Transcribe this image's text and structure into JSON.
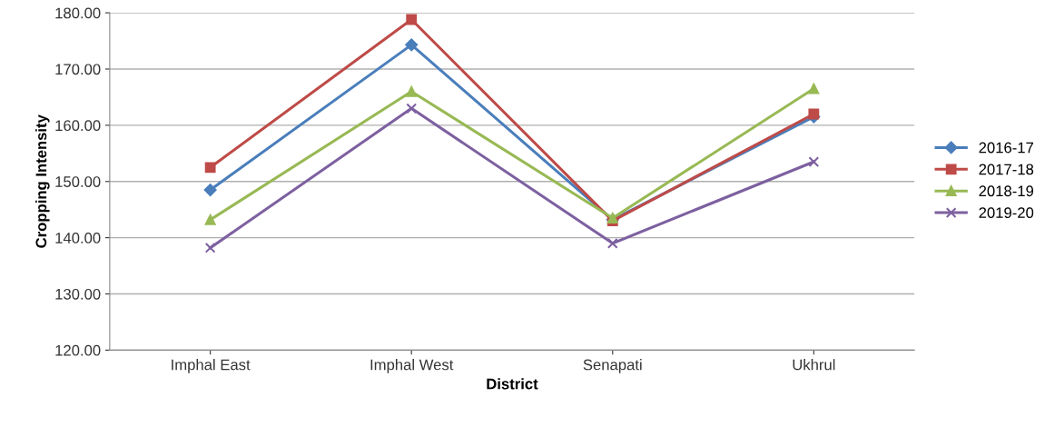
{
  "chart_data": {
    "type": "line",
    "xlabel": "District",
    "ylabel": "Cropping Intensity",
    "categories": [
      "Imphal East",
      "Imphal West",
      "Senapati",
      "Ukhrul"
    ],
    "series": [
      {
        "name": "2016-17",
        "color": "#4a7ebb",
        "marker": "diamond",
        "values": [
          148.5,
          174.3,
          143.2,
          161.5
        ]
      },
      {
        "name": "2017-18",
        "color": "#be4b48",
        "marker": "square",
        "values": [
          152.5,
          178.8,
          143.0,
          162.0
        ]
      },
      {
        "name": "2018-19",
        "color": "#98b954",
        "marker": "triangle",
        "values": [
          143.2,
          166.0,
          143.5,
          166.5
        ]
      },
      {
        "name": "2019-20",
        "color": "#7d60a0",
        "marker": "cross",
        "values": [
          138.2,
          163.0,
          139.0,
          153.5
        ]
      }
    ],
    "ylim": [
      120,
      180
    ],
    "yticks": [
      {
        "value": 120,
        "label": "120.00"
      },
      {
        "value": 130,
        "label": "130.00"
      },
      {
        "value": 140,
        "label": "140.00"
      },
      {
        "value": 150,
        "label": "150.00"
      },
      {
        "value": 160,
        "label": "160.00"
      },
      {
        "value": 170,
        "label": "170.00"
      },
      {
        "value": 180,
        "label": "180.00"
      }
    ],
    "grid": "y",
    "legend": "right",
    "line_style": "solid"
  }
}
